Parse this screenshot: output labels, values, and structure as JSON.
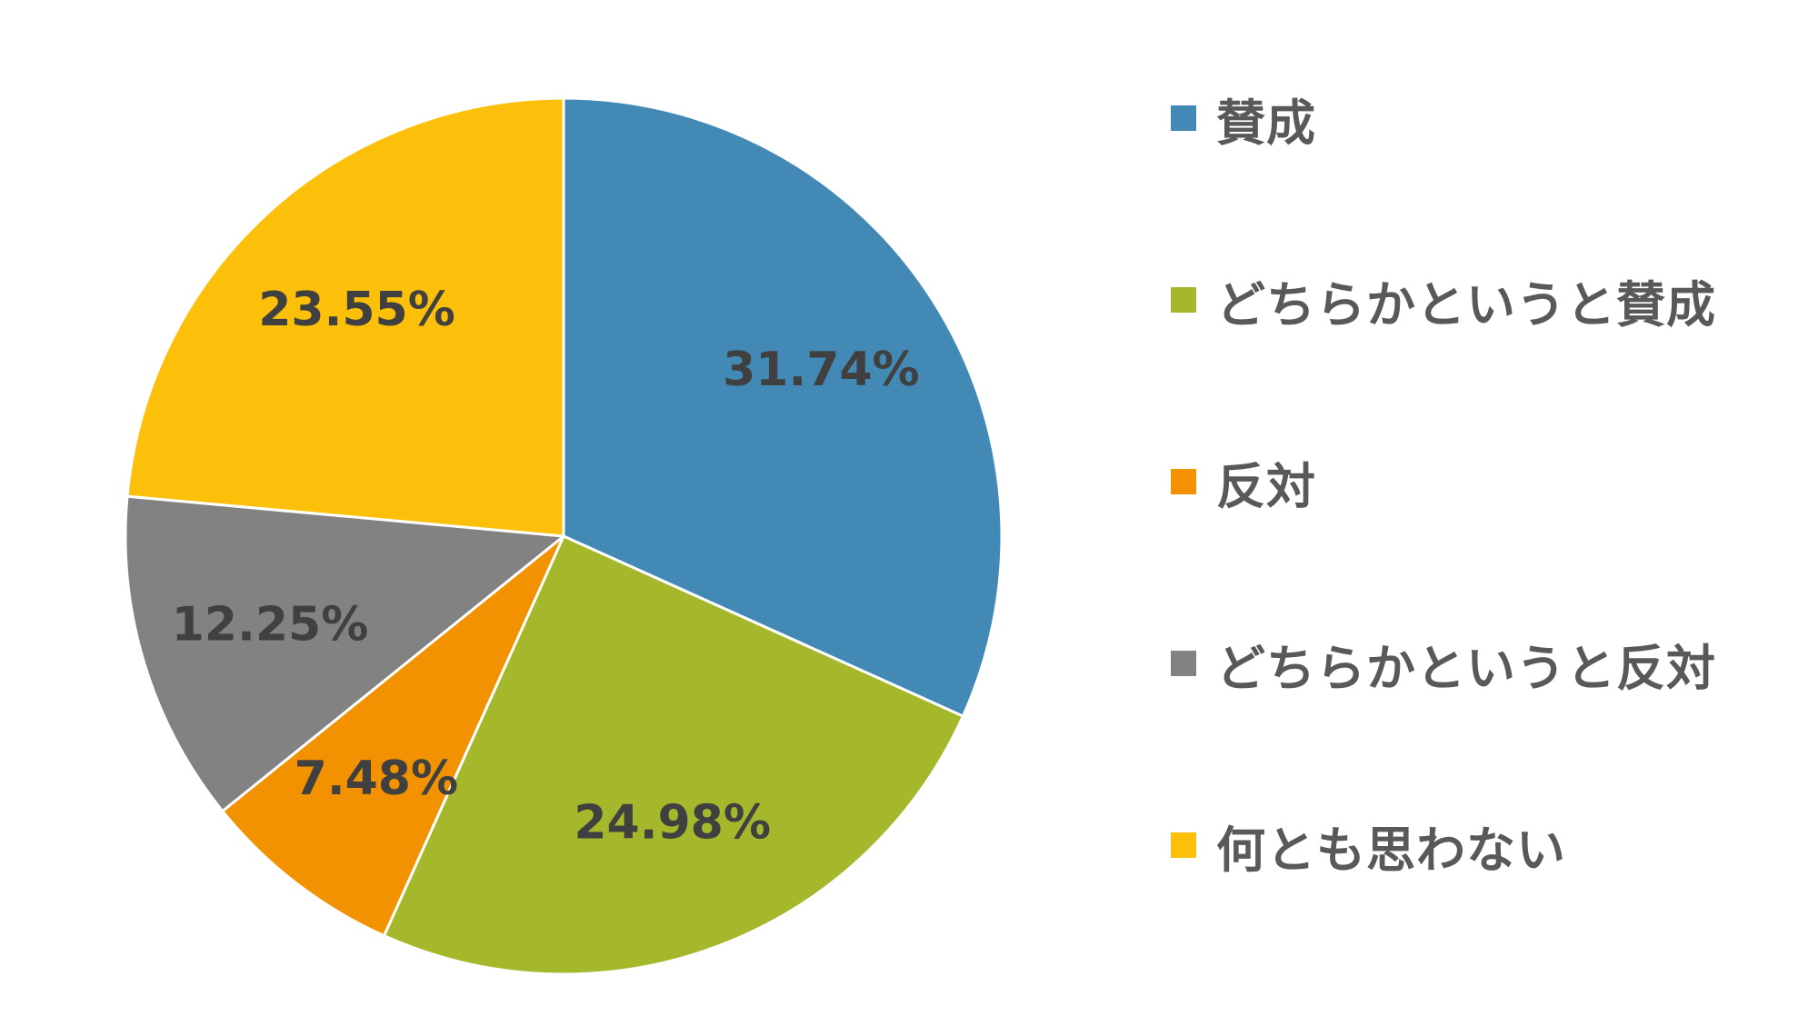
{
  "chart_data": {
    "type": "pie",
    "start_angle_deg": 0,
    "direction": "clockwise",
    "legend_position": "right",
    "slices": [
      {
        "name": "賛成",
        "value": 31.74,
        "label": "31.74%",
        "color": "#4289B5"
      },
      {
        "name": "どちらかというと賛成",
        "value": 24.98,
        "label": "24.98%",
        "color": "#A5B82B"
      },
      {
        "name": "反対",
        "value": 7.48,
        "label": "7.48%",
        "color": "#F39200"
      },
      {
        "name": "どちらかというと反対",
        "value": 12.25,
        "label": "12.25%",
        "color": "#828282"
      },
      {
        "name": "何とも思わない",
        "value": 23.55,
        "label": "23.55%",
        "color": "#FCC00A"
      }
    ]
  }
}
